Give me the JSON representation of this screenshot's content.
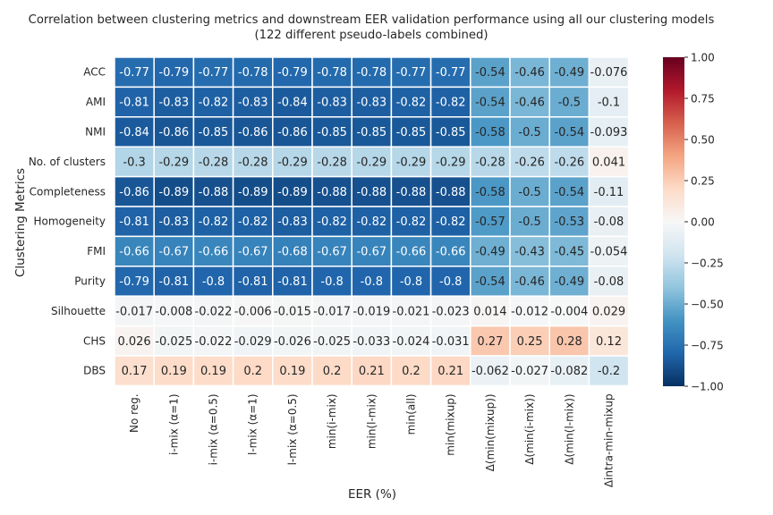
{
  "chart_data": {
    "type": "heatmap",
    "title_line1": "Correlation between clustering metrics and downstream EER validation performance using all our clustering models",
    "title_line2": "(122 different pseudo-labels combined)",
    "xlabel": "EER (%)",
    "ylabel": "Clustering Metrics",
    "rows": [
      "ACC",
      "AMI",
      "NMI",
      "No. of clusters",
      "Completeness",
      "Homogeneity",
      "FMI",
      "Purity",
      "Silhouette",
      "CHS",
      "DBS"
    ],
    "columns": [
      "No reg.",
      "i-mix (α=1)",
      "i-mix (α=0.5)",
      "l-mix (α=1)",
      "l-mix (α=0.5)",
      "min(i-mix)",
      "min(l-mix)",
      "min(all)",
      "min(mixup)",
      "Δ(min(mixup))",
      "Δ(min(i-mix))",
      "Δ(min(l-mix))",
      "Δintra-min-mixup"
    ],
    "values": [
      [
        -0.77,
        -0.79,
        -0.77,
        -0.78,
        -0.79,
        -0.78,
        -0.78,
        -0.77,
        -0.77,
        -0.54,
        -0.46,
        -0.49,
        -0.076
      ],
      [
        -0.81,
        -0.83,
        -0.82,
        -0.83,
        -0.84,
        -0.83,
        -0.83,
        -0.82,
        -0.82,
        -0.54,
        -0.46,
        -0.5,
        -0.1
      ],
      [
        -0.84,
        -0.86,
        -0.85,
        -0.86,
        -0.86,
        -0.85,
        -0.85,
        -0.85,
        -0.85,
        -0.58,
        -0.5,
        -0.54,
        -0.093
      ],
      [
        -0.3,
        -0.29,
        -0.28,
        -0.28,
        -0.29,
        -0.28,
        -0.29,
        -0.29,
        -0.29,
        -0.28,
        -0.26,
        -0.26,
        0.041
      ],
      [
        -0.86,
        -0.89,
        -0.88,
        -0.89,
        -0.89,
        -0.88,
        -0.88,
        -0.88,
        -0.88,
        -0.58,
        -0.5,
        -0.54,
        -0.11
      ],
      [
        -0.81,
        -0.83,
        -0.82,
        -0.82,
        -0.83,
        -0.82,
        -0.82,
        -0.82,
        -0.82,
        -0.57,
        -0.5,
        -0.53,
        -0.08
      ],
      [
        -0.66,
        -0.67,
        -0.66,
        -0.67,
        -0.68,
        -0.67,
        -0.67,
        -0.66,
        -0.66,
        -0.49,
        -0.43,
        -0.45,
        -0.054
      ],
      [
        -0.79,
        -0.81,
        -0.8,
        -0.81,
        -0.81,
        -0.8,
        -0.8,
        -0.8,
        -0.8,
        -0.54,
        -0.46,
        -0.49,
        -0.08
      ],
      [
        -0.017,
        -0.008,
        -0.022,
        -0.006,
        -0.015,
        -0.017,
        -0.019,
        -0.021,
        -0.023,
        0.014,
        -0.012,
        -0.004,
        0.029
      ],
      [
        0.026,
        -0.025,
        -0.022,
        -0.029,
        -0.026,
        -0.025,
        -0.033,
        -0.024,
        -0.031,
        0.27,
        0.25,
        0.28,
        0.12
      ],
      [
        0.17,
        0.19,
        0.19,
        0.2,
        0.19,
        0.2,
        0.21,
        0.2,
        0.21,
        -0.062,
        -0.027,
        -0.082,
        -0.2
      ]
    ],
    "vmin": -1.0,
    "vmax": 1.0,
    "colormap": "RdBu_r",
    "colorbar_ticks": [
      1.0,
      0.75,
      0.5,
      0.25,
      0.0,
      -0.25,
      -0.5,
      -0.75,
      -1.0
    ],
    "colorbar_tick_labels": [
      "1.00",
      "0.75",
      "0.50",
      "0.25",
      "0.00",
      "−0.25",
      "−0.50",
      "−0.75",
      "−1.00"
    ],
    "colors": {
      "grid_line": "#ffffff",
      "text_dark": "#262626",
      "text_light": "#ffffff"
    }
  }
}
